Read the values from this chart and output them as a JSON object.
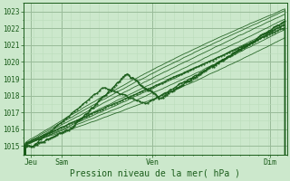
{
  "xlabel": "Pression niveau de la mer( hPa )",
  "bg_color": "#cce8cc",
  "plot_bg_color": "#cce8cc",
  "grid_major_color": "#99bb99",
  "grid_minor_color": "#bbddbb",
  "line_color": "#1a5c1a",
  "ylim": [
    1014.5,
    1023.5
  ],
  "xlim": [
    0,
    280
  ],
  "yticks": [
    1015,
    1016,
    1017,
    1018,
    1019,
    1020,
    1021,
    1022,
    1023
  ],
  "xtick_positions": [
    8,
    40,
    137,
    262
  ],
  "xtick_labels": [
    "Jeu",
    "Sam",
    "Ven",
    "Dim"
  ],
  "figsize": [
    3.2,
    2.0
  ],
  "dpi": 100
}
